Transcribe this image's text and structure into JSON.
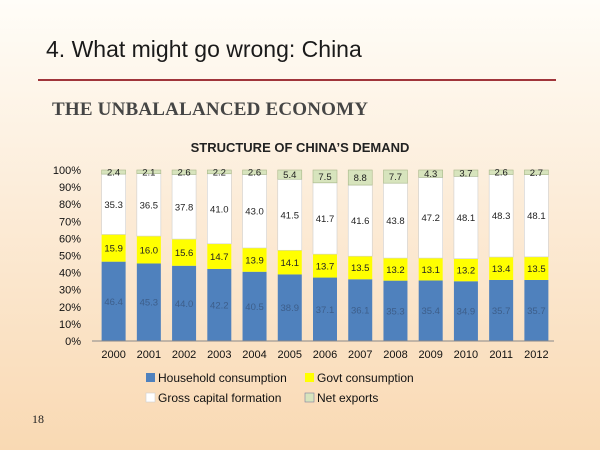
{
  "slide": {
    "title": "4. What might go wrong: China",
    "heading": "THE UNBALALANCED ECONOMY",
    "page_number": "18"
  },
  "colors": {
    "household": "#4f81bd",
    "govt": "#ffff00",
    "gross_capital": "#ffffff",
    "net_exports": "#d7e4bd",
    "title_rule": "#a0353a"
  },
  "chart_data": {
    "type": "bar",
    "stacked": true,
    "percent": true,
    "title": "STRUCTURE OF CHINA’S DEMAND",
    "categories": [
      "2000",
      "2001",
      "2002",
      "2003",
      "2004",
      "2005",
      "2006",
      "2007",
      "2008",
      "2009",
      "2010",
      "2011",
      "2012"
    ],
    "series": [
      {
        "name": "Household consumption",
        "values": [
          46.4,
          45.3,
          44.0,
          42.2,
          40.5,
          38.9,
          37.1,
          36.1,
          35.3,
          35.4,
          34.9,
          35.7,
          35.7
        ]
      },
      {
        "name": "Govt consumption",
        "values": [
          15.9,
          16.0,
          15.6,
          14.7,
          13.9,
          14.1,
          13.7,
          13.5,
          13.2,
          13.1,
          13.2,
          13.4,
          13.5
        ]
      },
      {
        "name": "Gross capital formation",
        "values": [
          35.3,
          36.5,
          37.8,
          41.0,
          43.0,
          41.5,
          41.7,
          41.6,
          43.8,
          47.2,
          48.1,
          48.3,
          48.1
        ]
      },
      {
        "name": "Net exports",
        "values": [
          2.4,
          2.1,
          2.6,
          2.2,
          2.6,
          5.4,
          7.5,
          8.8,
          7.7,
          4.3,
          3.7,
          2.6,
          2.7
        ]
      }
    ],
    "y_ticks": [
      "0%",
      "10%",
      "20%",
      "30%",
      "40%",
      "50%",
      "60%",
      "70%",
      "80%",
      "90%",
      "100%"
    ],
    "ylim": [
      0,
      100
    ],
    "grid": false,
    "legend_position": "bottom"
  }
}
